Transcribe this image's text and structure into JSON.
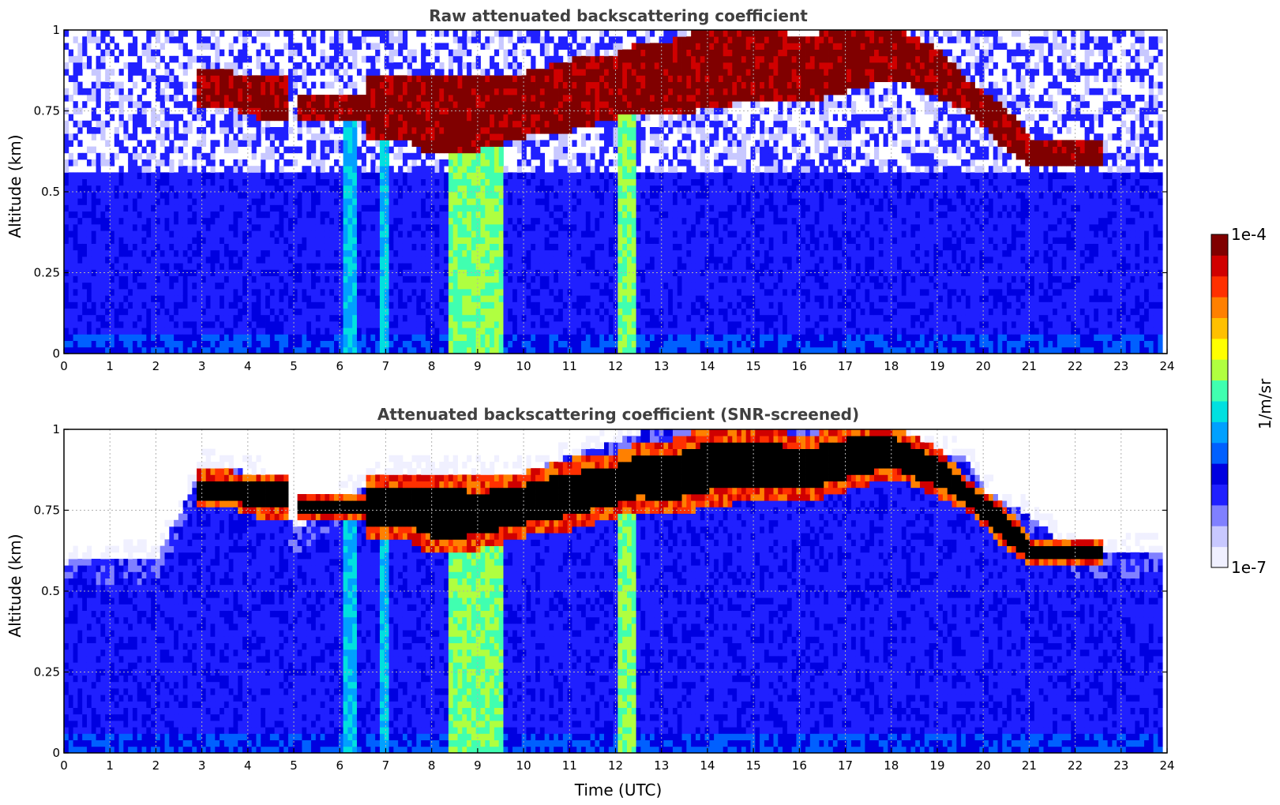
{
  "chart_data": [
    {
      "type": "heatmap",
      "title": "Raw attenuated backscattering coefficient",
      "xlabel": "",
      "ylabel": "Altitude (km)",
      "xlim": [
        0,
        24
      ],
      "ylim": [
        0,
        1
      ],
      "x_ticks": [
        "0",
        "1",
        "2",
        "3",
        "4",
        "5",
        "6",
        "7",
        "8",
        "9",
        "10",
        "11",
        "12",
        "13",
        "14",
        "15",
        "16",
        "17",
        "18",
        "19",
        "20",
        "21",
        "22",
        "23",
        "24"
      ],
      "y_ticks": [
        "0",
        "0.25",
        "0.5",
        "0.75",
        "1"
      ],
      "grid": true,
      "screened": false,
      "cloud_layer": [
        {
          "t": 3.6,
          "base": 0.75,
          "top": 0.86
        },
        {
          "t": 4.1,
          "base": 0.72,
          "top": 0.85
        },
        {
          "t": 5.8,
          "base": 0.71,
          "top": 0.78
        },
        {
          "t": 7.3,
          "base": 0.66,
          "top": 0.85
        },
        {
          "t": 8.0,
          "base": 0.6,
          "top": 0.86
        },
        {
          "t": 9.0,
          "base": 0.62,
          "top": 0.84
        },
        {
          "t": 10.0,
          "base": 0.66,
          "top": 0.86
        },
        {
          "t": 11.0,
          "base": 0.68,
          "top": 0.9
        },
        {
          "t": 12.0,
          "base": 0.72,
          "top": 0.92
        },
        {
          "t": 12.5,
          "base": 0.74,
          "top": 0.96
        },
        {
          "t": 13.0,
          "base": 0.72,
          "top": 0.95
        },
        {
          "t": 14.0,
          "base": 0.75,
          "top": 1.0
        },
        {
          "t": 15.0,
          "base": 0.77,
          "top": 1.0
        },
        {
          "t": 16.0,
          "base": 0.76,
          "top": 0.97
        },
        {
          "t": 17.0,
          "base": 0.8,
          "top": 1.0
        },
        {
          "t": 18.0,
          "base": 0.84,
          "top": 1.0
        },
        {
          "t": 19.0,
          "base": 0.78,
          "top": 0.93
        },
        {
          "t": 19.6,
          "base": 0.74,
          "top": 0.84
        },
        {
          "t": 20.3,
          "base": 0.64,
          "top": 0.77
        },
        {
          "t": 21.0,
          "base": 0.56,
          "top": 0.66
        },
        {
          "t": 21.8,
          "base": 0.57,
          "top": 0.65
        }
      ],
      "bright_columns": [
        {
          "t_start": 8.3,
          "t_end": 9.5,
          "level": "high"
        },
        {
          "t_start": 12.0,
          "t_end": 12.4,
          "level": "high"
        },
        {
          "t_start": 6.0,
          "t_end": 6.3,
          "level": "medium"
        },
        {
          "t_start": 6.8,
          "t_end": 7.0,
          "level": "medium"
        }
      ]
    },
    {
      "type": "heatmap",
      "title": "Attenuated backscattering coefficient (SNR-screened)",
      "xlabel": "Time (UTC)",
      "ylabel": "Altitude (km)",
      "xlim": [
        0,
        24
      ],
      "ylim": [
        0,
        1
      ],
      "x_ticks": [
        "0",
        "1",
        "2",
        "3",
        "4",
        "5",
        "6",
        "7",
        "8",
        "9",
        "10",
        "11",
        "12",
        "13",
        "14",
        "15",
        "16",
        "17",
        "18",
        "19",
        "20",
        "21",
        "22",
        "23",
        "24"
      ],
      "y_ticks": [
        "0",
        "0.25",
        "0.5",
        "0.75",
        "1"
      ],
      "grid": true,
      "screened": true,
      "saturated_color": "#000000",
      "mixed_layer_top": [
        {
          "t": 0,
          "h": 0.58
        },
        {
          "t": 2,
          "h": 0.6
        },
        {
          "t": 3,
          "h": 0.88
        },
        {
          "t": 4.2,
          "h": 0.85
        },
        {
          "t": 5,
          "h": 0.68
        },
        {
          "t": 6,
          "h": 0.78
        },
        {
          "t": 7,
          "h": 0.85
        },
        {
          "t": 10,
          "h": 0.86
        },
        {
          "t": 12.5,
          "h": 0.98
        },
        {
          "t": 14,
          "h": 1.0
        },
        {
          "t": 17,
          "h": 1.0
        },
        {
          "t": 19.6,
          "h": 0.9
        },
        {
          "t": 20,
          "h": 0.8
        },
        {
          "t": 21,
          "h": 0.72
        },
        {
          "t": 22,
          "h": 0.6
        },
        {
          "t": 24,
          "h": 0.62
        }
      ]
    }
  ],
  "colorbar": {
    "label": "1/m/sr",
    "max_label": "1e-4",
    "min_label": "1e-7",
    "colors": [
      "#f0f0ff",
      "#c8c8ff",
      "#8080ff",
      "#2020ff",
      "#0000e0",
      "#0060ff",
      "#00a0ff",
      "#00e0e0",
      "#40ffb0",
      "#b0ff40",
      "#ffff00",
      "#ffc000",
      "#ff8000",
      "#ff3000",
      "#d00000",
      "#800000"
    ]
  }
}
